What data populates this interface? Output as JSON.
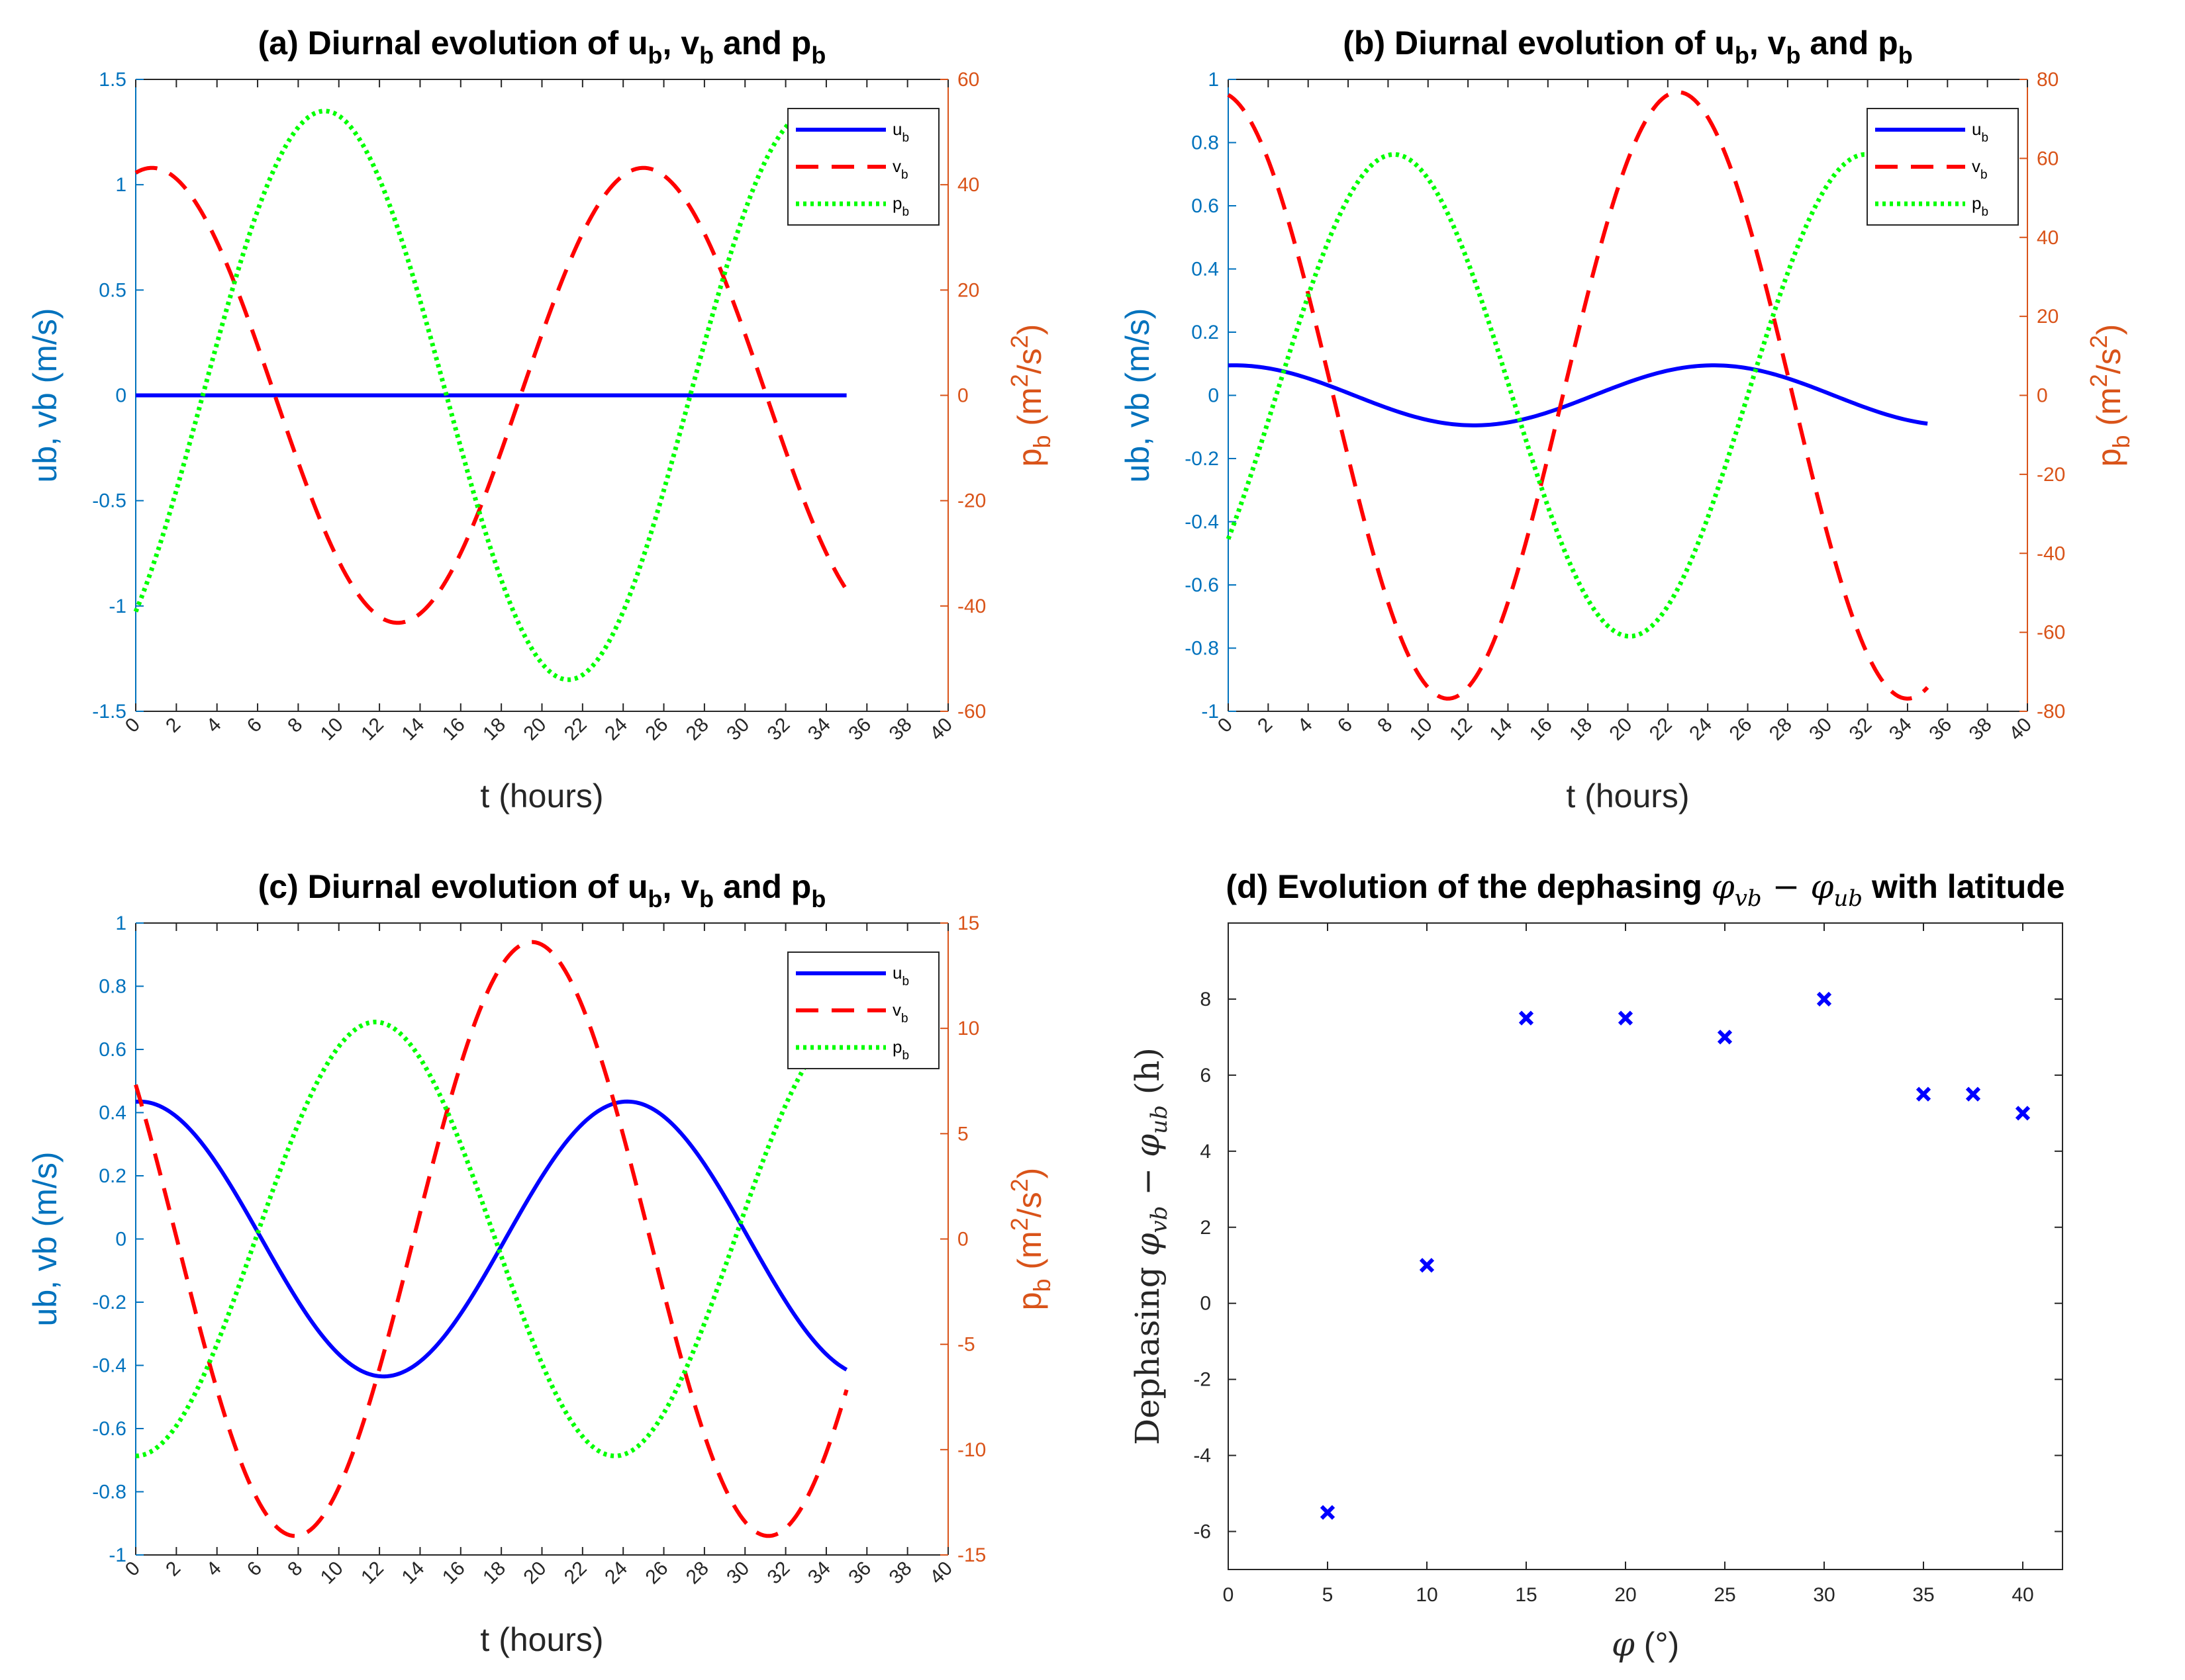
{
  "colors": {
    "left_axis": "#0072BD",
    "right_axis": "#D95319",
    "ub_line": "#0000FF",
    "vb_line": "#FF0000",
    "pb_line": "#00FF00",
    "scatter": "#0000FF",
    "axis_black": "#262626"
  },
  "chart_data": [
    {
      "id": "a",
      "type": "line",
      "title": "(a) Diurnal evolution of u",
      "title_parts": [
        "(a) Diurnal evolution of u",
        "b",
        ", v",
        "b",
        " and p",
        "b"
      ],
      "xlabel": "t (hours)",
      "ylabel_left": "ub, vb (m/s)",
      "ylabel_right_parts": [
        "p",
        "b",
        " (m",
        "2",
        "/s",
        "2",
        ")"
      ],
      "xlim": [
        0,
        40
      ],
      "xticks": [
        0,
        2,
        4,
        6,
        8,
        10,
        12,
        14,
        16,
        18,
        20,
        22,
        24,
        26,
        28,
        30,
        32,
        34,
        36,
        38,
        40
      ],
      "ylim_left": [
        -1.5,
        1.5
      ],
      "yticks_left": [
        -1.5,
        -1,
        -0.5,
        0,
        0.5,
        1,
        1.5
      ],
      "ylim_right": [
        -60,
        60
      ],
      "yticks_right": [
        -60,
        -40,
        -20,
        0,
        20,
        40,
        60
      ],
      "legend": [
        {
          "label": "u",
          "sub": "b",
          "series": "ub"
        },
        {
          "label": "v",
          "sub": "b",
          "series": "vb"
        },
        {
          "label": "p",
          "sub": "b",
          "series": "pb"
        }
      ],
      "series": [
        {
          "name": "ub",
          "axis": "left",
          "style": "solid",
          "t_range": [
            0,
            35
          ],
          "amp": 0.0,
          "period": 24,
          "phase_peak": 0,
          "offset": 0
        },
        {
          "name": "vb",
          "axis": "left",
          "style": "dashed",
          "t_range": [
            0,
            35
          ],
          "amp": 1.08,
          "period": 24.2,
          "phase_peak": 0.8,
          "offset": 0
        },
        {
          "name": "pb",
          "axis": "right",
          "style": "dotted",
          "t_range": [
            0,
            33.5
          ],
          "amp": 54,
          "period": 24,
          "phase_peak": 9.3,
          "offset": 0
        }
      ]
    },
    {
      "id": "b",
      "type": "line",
      "title": "(b) Diurnal evolution of u",
      "title_parts": [
        "(b) Diurnal evolution of u",
        "b",
        ", v",
        "b",
        " and p",
        "b"
      ],
      "xlabel": "t (hours)",
      "ylabel_left": "ub, vb (m/s)",
      "ylabel_right_parts": [
        "p",
        "b",
        " (m",
        "2",
        "/s",
        "2",
        ")"
      ],
      "xlim": [
        0,
        40
      ],
      "xticks": [
        0,
        2,
        4,
        6,
        8,
        10,
        12,
        14,
        16,
        18,
        20,
        22,
        24,
        26,
        28,
        30,
        32,
        34,
        36,
        38,
        40
      ],
      "ylim_left": [
        -1,
        1
      ],
      "yticks_left": [
        -1,
        -0.8,
        -0.6,
        -0.4,
        -0.2,
        0,
        0.2,
        0.4,
        0.6,
        0.8,
        1
      ],
      "ylim_right": [
        -80,
        80
      ],
      "yticks_right": [
        -80,
        -60,
        -40,
        -20,
        0,
        20,
        40,
        60,
        80
      ],
      "legend": [
        {
          "label": "u",
          "sub": "b",
          "series": "ub"
        },
        {
          "label": "v",
          "sub": "b",
          "series": "vb"
        },
        {
          "label": "p",
          "sub": "b",
          "series": "pb"
        }
      ],
      "series": [
        {
          "name": "ub",
          "axis": "left",
          "style": "solid",
          "t_range": [
            0,
            35
          ],
          "amp": 0.095,
          "period": 24,
          "phase_peak": 0.3,
          "offset": 0
        },
        {
          "name": "vb",
          "axis": "left",
          "style": "dashed",
          "t_range": [
            0,
            35
          ],
          "amp": 0.96,
          "period": 23.0,
          "phase_peak": -0.5,
          "offset": 0
        },
        {
          "name": "pb",
          "axis": "right",
          "style": "dotted",
          "t_range": [
            0,
            33.5
          ],
          "amp": 61,
          "period": 23.6,
          "phase_peak": 8.3,
          "offset": 0
        }
      ]
    },
    {
      "id": "c",
      "type": "line",
      "title": "(c) Diurnal evolution of u",
      "title_parts": [
        "(c) Diurnal evolution of u",
        "b",
        ", v",
        "b",
        " and p",
        "b"
      ],
      "xlabel": "t (hours)",
      "ylabel_left": "ub, vb (m/s)",
      "ylabel_right_parts": [
        "p",
        "b",
        " (m",
        "2",
        "/s",
        "2",
        ")"
      ],
      "xlim": [
        0,
        40
      ],
      "xticks": [
        0,
        2,
        4,
        6,
        8,
        10,
        12,
        14,
        16,
        18,
        20,
        22,
        24,
        26,
        28,
        30,
        32,
        34,
        36,
        38,
        40
      ],
      "ylim_left": [
        -1,
        1
      ],
      "yticks_left": [
        -1,
        -0.8,
        -0.6,
        -0.4,
        -0.2,
        0,
        0.2,
        0.4,
        0.6,
        0.8,
        1
      ],
      "ylim_right": [
        -15,
        15
      ],
      "yticks_right": [
        -15,
        -10,
        -5,
        0,
        5,
        10,
        15
      ],
      "legend": [
        {
          "label": "u",
          "sub": "b",
          "series": "ub"
        },
        {
          "label": "v",
          "sub": "b",
          "series": "vb"
        },
        {
          "label": "p",
          "sub": "b",
          "series": "pb"
        }
      ],
      "series": [
        {
          "name": "ub",
          "axis": "left",
          "style": "solid",
          "t_range": [
            0,
            35
          ],
          "amp": 0.435,
          "period": 24,
          "phase_peak": 0.2,
          "offset": 0
        },
        {
          "name": "vb",
          "axis": "left",
          "style": "dashed",
          "t_range": [
            0,
            35
          ],
          "amp": 0.94,
          "period": 23.3,
          "phase_peak": 19.5,
          "offset": 0
        },
        {
          "name": "pb",
          "axis": "right",
          "style": "dotted",
          "t_range": [
            0,
            33.5
          ],
          "amp": 10.3,
          "period": 23.6,
          "phase_peak": 11.8,
          "offset": 0
        }
      ]
    },
    {
      "id": "d",
      "type": "scatter",
      "title_prefix": "(d) Evolution of the dephasing ",
      "title_math": "φ",
      "title_math_sub1": "vb",
      "title_minus": " − ",
      "title_math2": "φ",
      "title_math_sub2": "ub",
      "title_suffix": " with latitude",
      "xlabel_math": "φ",
      "xlabel_unit": " (°)",
      "ylabel_prefix": "Dephasing ",
      "ylabel_math": "φ",
      "ylabel_sub1": "vb",
      "ylabel_minus": " − ",
      "ylabel_math2": "φ",
      "ylabel_sub2": "ub",
      "ylabel_unit": " (h)",
      "xlim": [
        0,
        42
      ],
      "xticks": [
        0,
        5,
        10,
        15,
        20,
        25,
        30,
        35,
        40
      ],
      "ylim": [
        -7,
        10
      ],
      "yticks": [
        -6,
        -4,
        -2,
        0,
        2,
        4,
        6,
        8
      ],
      "x": [
        5,
        10,
        15,
        20,
        25,
        30,
        35,
        37.5,
        40
      ],
      "y": [
        -5.5,
        1,
        7.5,
        7.5,
        7,
        8,
        5.5,
        5.5,
        5
      ]
    }
  ]
}
